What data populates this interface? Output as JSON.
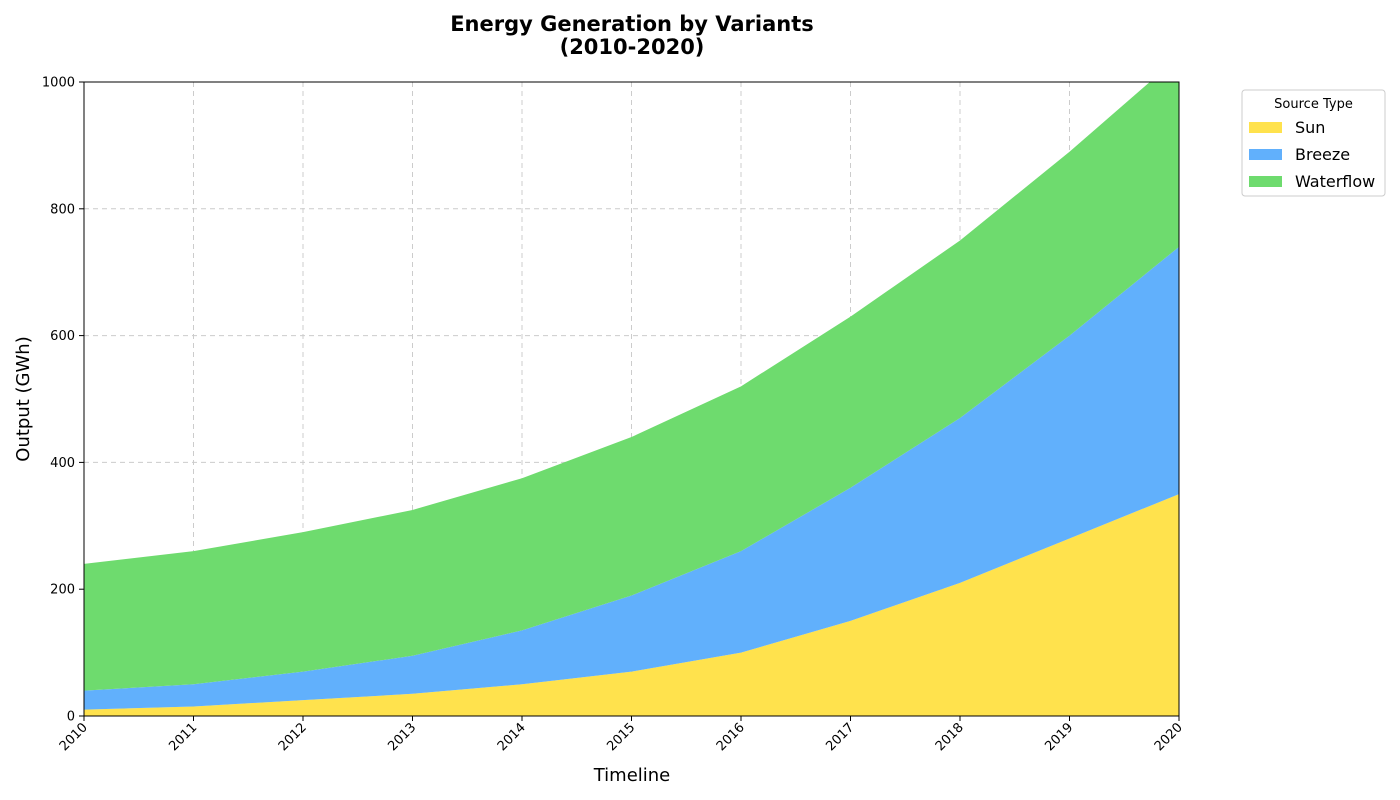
{
  "chart_data": {
    "type": "area",
    "stacked": true,
    "title": "Energy Generation by Variants\n(2010-2020)",
    "xlabel": "Timeline",
    "ylabel": "Output (GWh)",
    "x": [
      "2010",
      "2011",
      "2012",
      "2013",
      "2014",
      "2015",
      "2016",
      "2017",
      "2018",
      "2019",
      "2020"
    ],
    "ylim": [
      0,
      1000
    ],
    "yticks": [
      0,
      200,
      400,
      600,
      800,
      1000
    ],
    "grid": true,
    "legend": {
      "title": "Source Type",
      "placement": "outside top-right"
    },
    "series": [
      {
        "name": "Sun",
        "color": "#ffe24d",
        "values": [
          10,
          15,
          25,
          35,
          50,
          70,
          100,
          150,
          210,
          280,
          350
        ]
      },
      {
        "name": "Breeze",
        "color": "#61b0fc",
        "values": [
          30,
          35,
          45,
          60,
          85,
          120,
          160,
          210,
          260,
          320,
          390
        ]
      },
      {
        "name": "Waterflow",
        "color": "#6edb6e",
        "values": [
          200,
          210,
          220,
          230,
          240,
          250,
          260,
          270,
          280,
          290,
          300
        ]
      }
    ]
  }
}
